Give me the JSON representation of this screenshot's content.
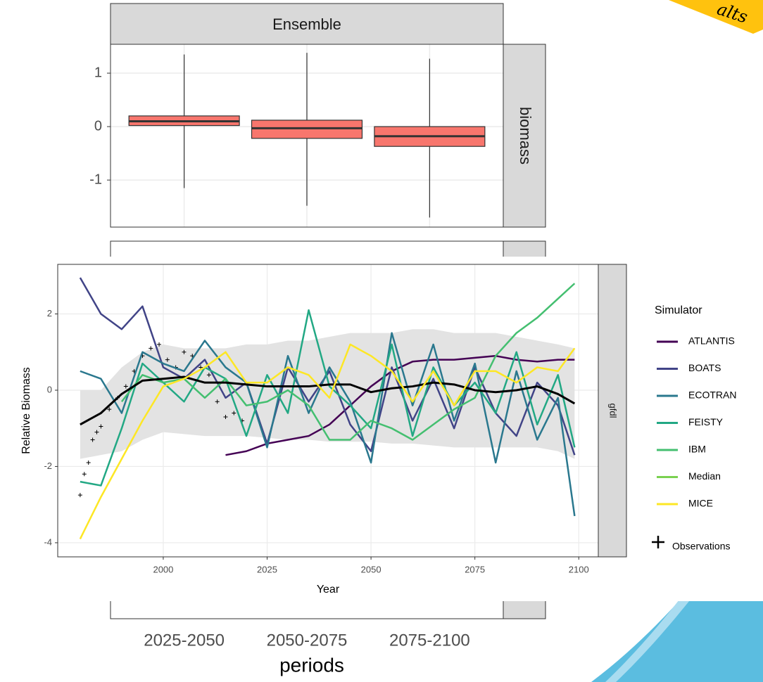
{
  "banner_text": "alts",
  "chart_data": [
    {
      "type": "box",
      "title": "Ensemble",
      "facet": "biomass",
      "x_label": "periods",
      "categories": [
        "2025-2050",
        "2050-2075",
        "2075-2100"
      ],
      "whisker_low": [
        -1.15,
        -1.48,
        -1.7
      ],
      "q1": [
        0.02,
        -0.22,
        -0.37
      ],
      "median": [
        0.1,
        -0.03,
        -0.18
      ],
      "q3": [
        0.2,
        0.12,
        0.0
      ],
      "whisker_high": [
        1.35,
        1.38,
        1.27
      ],
      "color": "#f8766d",
      "ylim": [
        -1.88,
        1.54
      ],
      "yticks": [
        -1,
        0,
        1
      ],
      "grid": true
    },
    {
      "type": "line",
      "x_label": "Year",
      "y_label": "Relative Biomass",
      "facet": "gfdl",
      "legend_title": "Simulator",
      "grid": true,
      "x": [
        1980,
        1985,
        1990,
        1995,
        2000,
        2005,
        2010,
        2015,
        2020,
        2025,
        2030,
        2035,
        2040,
        2045,
        2050,
        2055,
        2060,
        2065,
        2070,
        2075,
        2080,
        2085,
        2090,
        2095,
        2099
      ],
      "ribbon": {
        "color": "#e3e3e3",
        "upper": [
          0.0,
          0.0,
          0.6,
          1.0,
          1.2,
          1.1,
          1.1,
          1.1,
          1.2,
          1.2,
          1.3,
          1.3,
          1.4,
          1.5,
          1.5,
          1.5,
          1.6,
          1.6,
          1.5,
          1.5,
          1.5,
          1.4,
          1.3,
          1.2,
          1.1
        ],
        "lower": [
          -1.8,
          -1.7,
          -1.6,
          -1.3,
          -1.1,
          -1.15,
          -1.2,
          -1.2,
          -1.2,
          -1.25,
          -1.3,
          -1.3,
          -1.35,
          -1.35,
          -1.35,
          -1.4,
          -1.4,
          -1.45,
          -1.5,
          -1.5,
          -1.5,
          -1.5,
          -1.5,
          -1.6,
          -1.8
        ]
      },
      "series": [
        {
          "name": "ATLANTIS",
          "color": "#440154",
          "values": [
            null,
            null,
            null,
            null,
            null,
            null,
            null,
            -1.7,
            -1.6,
            -1.4,
            -1.3,
            -1.2,
            -0.9,
            -0.4,
            0.1,
            0.5,
            0.75,
            0.8,
            0.8,
            0.85,
            0.9,
            0.8,
            0.75,
            0.8,
            0.8
          ]
        },
        {
          "name": "BOATS",
          "color": "#414487",
          "values": [
            2.95,
            2.0,
            1.6,
            2.2,
            0.6,
            0.3,
            0.8,
            -0.2,
            0.2,
            -1.4,
            0.6,
            -0.3,
            0.5,
            -0.9,
            -1.6,
            0.6,
            -0.8,
            0.3,
            -1.0,
            0.6,
            -0.6,
            -1.2,
            0.2,
            -0.4,
            -1.7
          ]
        },
        {
          "name": "ECOTRAN",
          "color": "#2a788e",
          "values": [
            0.5,
            0.3,
            -0.6,
            1.0,
            0.7,
            0.5,
            1.3,
            0.6,
            0.2,
            -1.5,
            0.9,
            -0.6,
            0.6,
            -0.3,
            -1.9,
            1.5,
            -0.4,
            1.2,
            -0.8,
            0.7,
            -1.9,
            0.5,
            -1.3,
            -0.2,
            -3.3
          ]
        },
        {
          "name": "FEISTY",
          "color": "#22a884",
          "values": [
            -2.4,
            -2.5,
            -1.0,
            0.7,
            0.2,
            -0.3,
            0.6,
            0.3,
            -1.2,
            0.4,
            -0.6,
            2.1,
            0.1,
            -0.4,
            -1.0,
            1.2,
            -1.2,
            0.6,
            -0.4,
            0.2,
            -0.6,
            1.0,
            -0.9,
            0.4,
            -1.5
          ]
        },
        {
          "name": "IBM",
          "color": "#44bf70",
          "values": [
            null,
            null,
            -0.3,
            0.4,
            0.2,
            0.3,
            -0.2,
            0.3,
            -0.4,
            -0.3,
            0.0,
            -0.4,
            -1.3,
            -1.3,
            -0.8,
            -1.0,
            -1.3,
            -0.9,
            -0.5,
            -0.2,
            0.9,
            1.5,
            1.9,
            2.4,
            2.8
          ]
        },
        {
          "name": "Median",
          "color": "#7ad151",
          "line_color": "#000000",
          "values": [
            -0.9,
            -0.6,
            -0.1,
            0.25,
            0.3,
            0.35,
            0.2,
            0.2,
            0.15,
            0.1,
            0.1,
            0.1,
            0.15,
            0.15,
            -0.05,
            0.05,
            0.1,
            0.2,
            0.15,
            0.0,
            -0.05,
            0.0,
            0.1,
            -0.1,
            -0.35
          ]
        },
        {
          "name": "MICE",
          "color": "#fde725",
          "values": [
            -3.9,
            -2.8,
            -1.8,
            -0.8,
            0.1,
            0.3,
            0.6,
            1.0,
            0.2,
            0.2,
            0.6,
            0.4,
            -0.2,
            1.2,
            0.9,
            0.5,
            -0.3,
            0.5,
            -0.4,
            0.5,
            0.5,
            0.2,
            0.6,
            0.5,
            1.1
          ]
        }
      ],
      "observations": {
        "name": "Observations",
        "color": "#000000",
        "x": [
          1980,
          1981,
          1982,
          1983,
          1984,
          1985,
          1987,
          1989,
          1991,
          1993,
          1995,
          1997,
          1999,
          2001,
          2003,
          2005,
          2007,
          2009,
          2011,
          2013,
          2015,
          2017,
          2019
        ],
        "values": [
          -2.75,
          -2.2,
          -1.9,
          -1.3,
          -1.1,
          -0.95,
          -0.5,
          -0.2,
          0.1,
          0.5,
          0.9,
          1.1,
          1.2,
          0.8,
          0.6,
          1.0,
          0.9,
          0.6,
          0.4,
          -0.3,
          -0.7,
          -0.6,
          -0.8
        ]
      },
      "xlim": [
        1974.6,
        2104.7
      ],
      "xticks": [
        2000,
        2025,
        2050,
        2075,
        2100
      ],
      "ylim": [
        -4.37,
        3.3
      ],
      "yticks": [
        -4,
        -2,
        0,
        2
      ]
    }
  ]
}
